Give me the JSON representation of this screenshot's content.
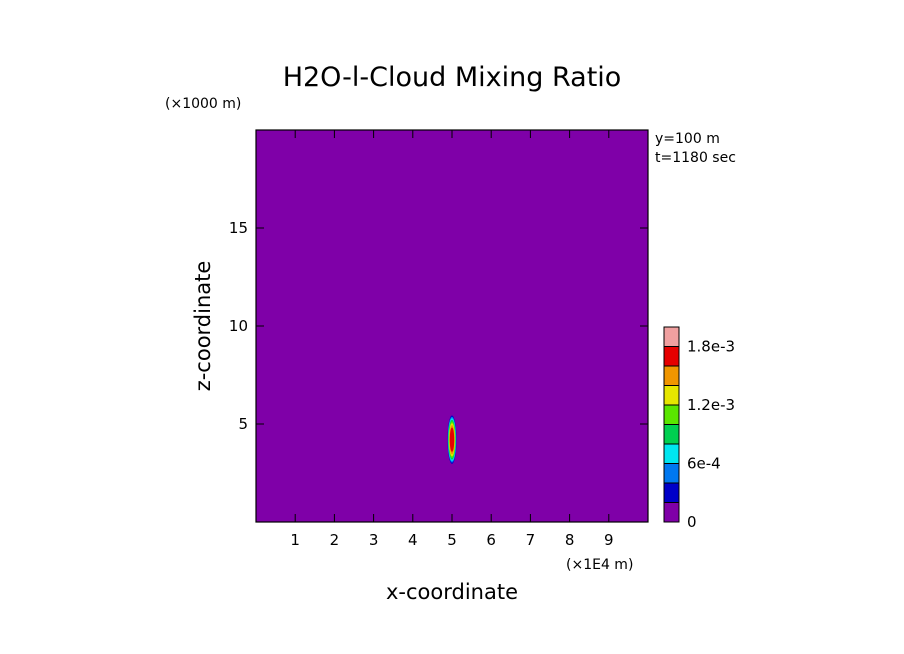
{
  "chart_data": {
    "type": "heatmap",
    "title": "H2O-l-Cloud Mixing Ratio",
    "xlabel": "x-coordinate",
    "ylabel": "z-coordinate",
    "x_multiplier": "(×1E4 m)",
    "y_multiplier": "(×1000 m)",
    "annotations": [
      "y=100 m",
      "t=1180 sec"
    ],
    "xlim": [
      0,
      10
    ],
    "ylim": [
      0,
      20
    ],
    "x_ticks": [
      1,
      2,
      3,
      4,
      5,
      6,
      7,
      8,
      9
    ],
    "y_ticks": [
      5,
      10,
      15
    ],
    "background_value": 0,
    "feature": {
      "center_x": 5.0,
      "center_z": 4.2,
      "half_width_x": 0.12,
      "half_height_z": 1.3,
      "peak_value": 0.0017
    },
    "colorbar": {
      "levels": [
        0,
        0.0002,
        0.0004,
        0.0006,
        0.0008,
        0.001,
        0.0012,
        0.0014,
        0.0016,
        0.0018,
        0.002
      ],
      "colors": [
        "#7f00a8",
        "#0000c8",
        "#0078f0",
        "#00e6f0",
        "#00d050",
        "#5ae600",
        "#e6e600",
        "#f09600",
        "#e60000",
        "#f0a0a0"
      ],
      "tick_labels": [
        {
          "value": 0,
          "label": "0"
        },
        {
          "value": 0.0006,
          "label": "6e-4"
        },
        {
          "value": 0.0012,
          "label": "1.2e-3"
        },
        {
          "value": 0.0018,
          "label": "1.8e-3"
        }
      ]
    }
  }
}
